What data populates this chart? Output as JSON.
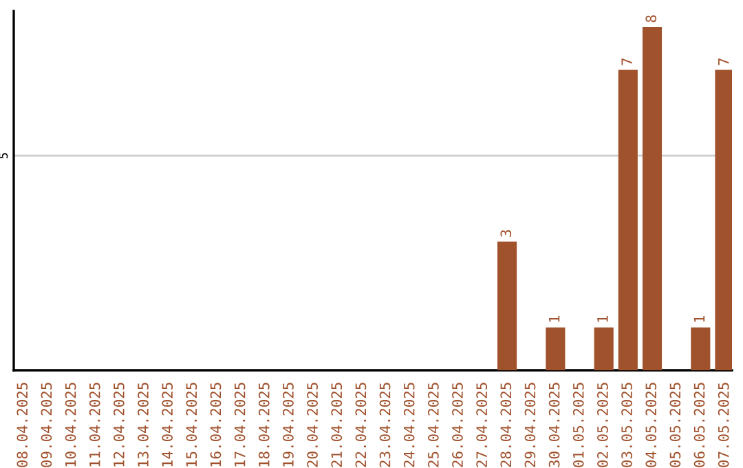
{
  "chart_data": {
    "type": "bar",
    "categories": [
      "08.04.2025",
      "09.04.2025",
      "10.04.2025",
      "11.04.2025",
      "12.04.2025",
      "13.04.2025",
      "14.04.2025",
      "15.04.2025",
      "16.04.2025",
      "17.04.2025",
      "18.04.2025",
      "19.04.2025",
      "20.04.2025",
      "21.04.2025",
      "22.04.2025",
      "23.04.2025",
      "24.04.2025",
      "25.04.2025",
      "26.04.2025",
      "27.04.2025",
      "28.04.2025",
      "29.04.2025",
      "30.04.2025",
      "01.05.2025",
      "02.05.2025",
      "03.05.2025",
      "04.05.2025",
      "05.05.2025",
      "06.05.2025",
      "07.05.2025"
    ],
    "values": [
      null,
      null,
      null,
      null,
      null,
      null,
      null,
      null,
      null,
      null,
      null,
      null,
      null,
      null,
      null,
      null,
      null,
      null,
      null,
      null,
      3,
      null,
      1,
      null,
      1,
      7,
      8,
      null,
      1,
      7
    ],
    "value_labels": [
      null,
      null,
      null,
      null,
      null,
      null,
      null,
      null,
      null,
      null,
      null,
      null,
      null,
      null,
      null,
      null,
      null,
      null,
      null,
      null,
      "3",
      null,
      "1",
      null,
      "1",
      "7",
      "8",
      null,
      "1",
      "7"
    ],
    "color": "#a0522d",
    "ylim": [
      0,
      8.37
    ],
    "yticks": [
      5
    ],
    "grid": "y"
  }
}
